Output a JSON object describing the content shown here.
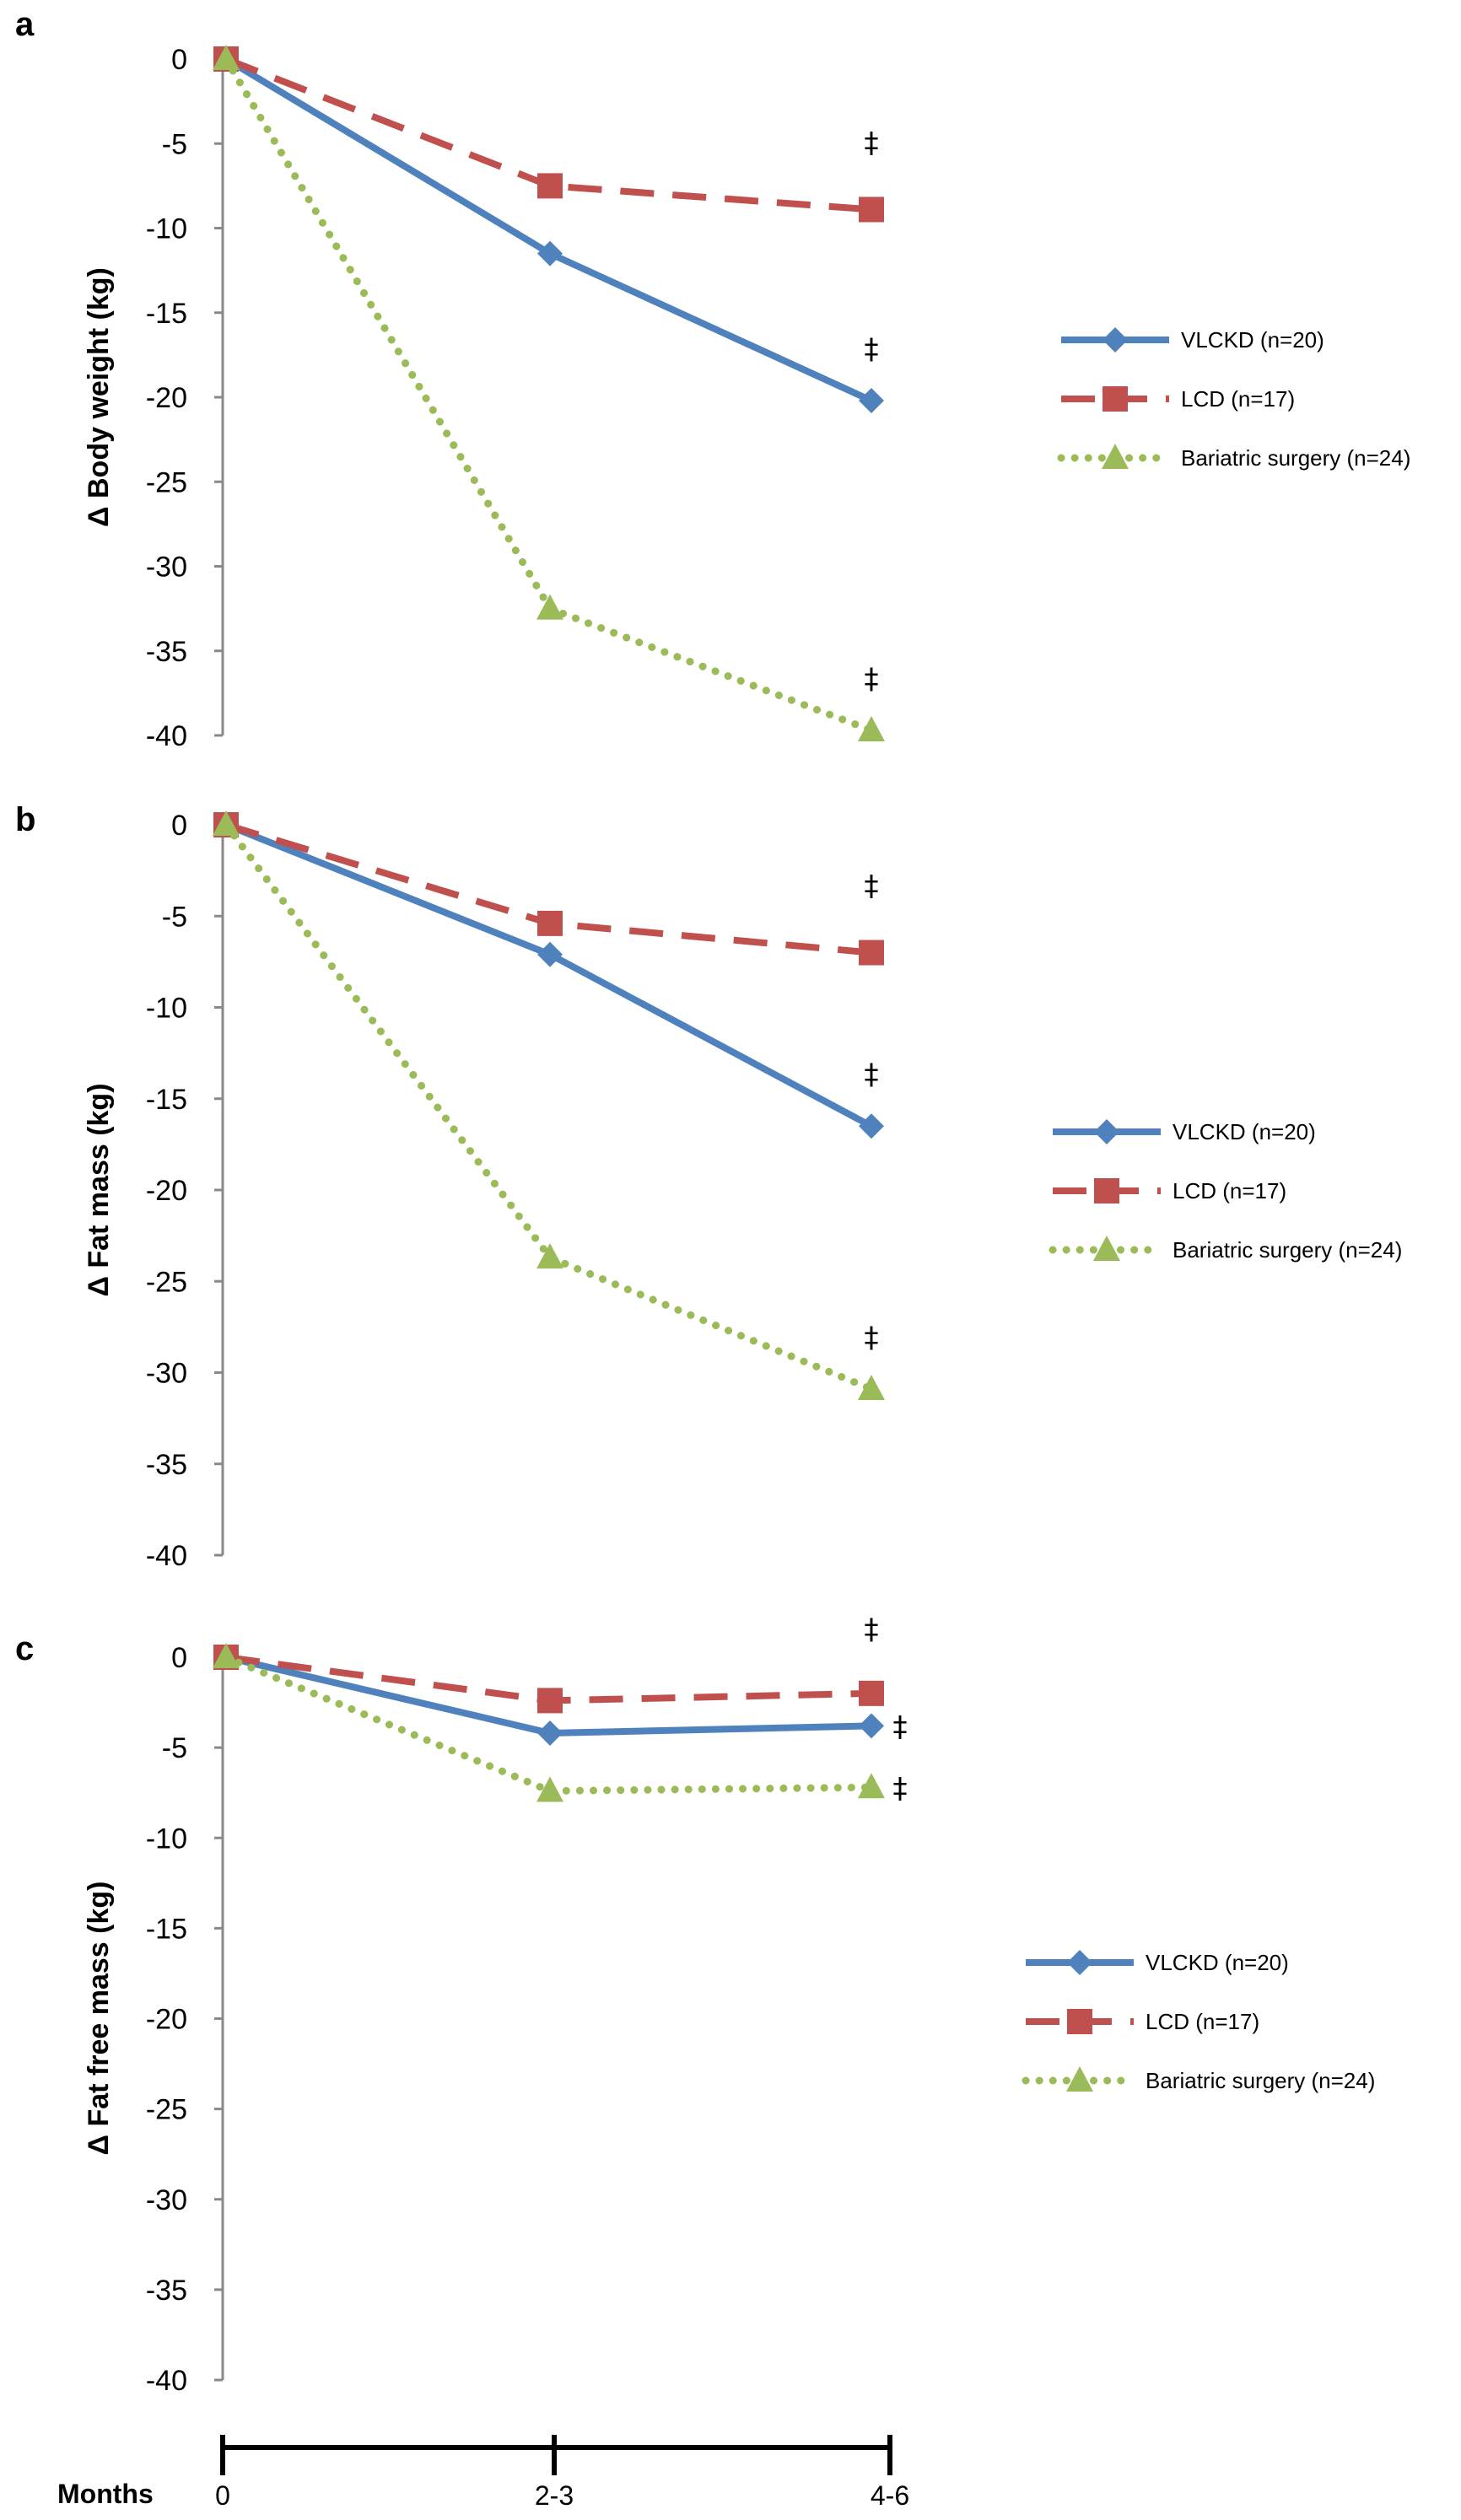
{
  "chart_data": [
    {
      "type": "line",
      "panel": "a",
      "ylabel": "Δ Body weight  (kg)",
      "ylim": [
        -40,
        0
      ],
      "yticks": [
        0,
        -5,
        -10,
        -15,
        -20,
        -25,
        -30,
        -35,
        -40
      ],
      "ytick_labels": [
        "0",
        "-5",
        "-10",
        "-15",
        "-20",
        "-25",
        "-30",
        "-35",
        "-40"
      ],
      "categories": [
        "0",
        "2-3",
        "4-6"
      ],
      "series": [
        {
          "name": "VLCKD (n=20)",
          "values": [
            0,
            -11.5,
            -20.2
          ],
          "color": "#4F81BD",
          "style": "solid",
          "marker": "diamond"
        },
        {
          "name": "LCD (n=17)",
          "values": [
            0,
            -7.5,
            -8.9
          ],
          "color": "#C0504D",
          "style": "dashed",
          "marker": "square"
        },
        {
          "name": "Bariatric surgery (n=24)",
          "values": [
            0,
            -32.5,
            -39.7
          ],
          "color": "#9BBB59",
          "style": "dotted",
          "marker": "triangle"
        }
      ],
      "annotations": [
        {
          "text": "‡",
          "series": "LCD (n=17)",
          "category": "4-6"
        },
        {
          "text": "‡",
          "series": "VLCKD (n=20)",
          "category": "4-6"
        },
        {
          "text": "‡",
          "series": "Bariatric surgery (n=24)",
          "category": "4-6"
        }
      ],
      "legend": "right"
    },
    {
      "type": "line",
      "panel": "b",
      "ylabel": "Δ Fat mass (kg)",
      "ylim": [
        -40,
        0
      ],
      "yticks": [
        0,
        -5,
        -10,
        -15,
        -20,
        -25,
        -30,
        -35,
        -40
      ],
      "ytick_labels": [
        "0",
        "-5",
        "-10",
        "-15",
        "-20",
        "-25",
        "-30",
        "-35",
        "-40"
      ],
      "categories": [
        "0",
        "2-3",
        "4-6"
      ],
      "series": [
        {
          "name": "VLCKD (n=20)",
          "values": [
            0,
            -7.1,
            -16.5
          ],
          "color": "#4F81BD",
          "style": "solid",
          "marker": "diamond"
        },
        {
          "name": "LCD (n=17)",
          "values": [
            0,
            -5.4,
            -7.0
          ],
          "color": "#C0504D",
          "style": "dashed",
          "marker": "square"
        },
        {
          "name": "Bariatric surgery (n=24)",
          "values": [
            0,
            -23.7,
            -30.9
          ],
          "color": "#9BBB59",
          "style": "dotted",
          "marker": "triangle"
        }
      ],
      "annotations": [
        {
          "text": "‡",
          "series": "LCD (n=17)",
          "category": "4-6"
        },
        {
          "text": "‡",
          "series": "VLCKD (n=20)",
          "category": "4-6"
        },
        {
          "text": "‡",
          "series": "Bariatric surgery (n=24)",
          "category": "4-6"
        }
      ],
      "legend": "right"
    },
    {
      "type": "line",
      "panel": "c",
      "ylabel": "Δ Fat free mass (kg)",
      "ylim": [
        -40,
        0
      ],
      "yticks": [
        0,
        -5,
        -10,
        -15,
        -20,
        -25,
        -30,
        -35,
        -40
      ],
      "ytick_labels": [
        "0",
        "-5",
        "-10",
        "-15",
        "-20",
        "-25",
        "-30",
        "-35",
        "-40"
      ],
      "categories": [
        "0",
        "2-3",
        "4-6"
      ],
      "series": [
        {
          "name": "VLCKD (n=20)",
          "values": [
            0,
            -4.2,
            -3.8
          ],
          "color": "#4F81BD",
          "style": "solid",
          "marker": "diamond"
        },
        {
          "name": "LCD (n=17)",
          "values": [
            0,
            -2.4,
            -2.0
          ],
          "color": "#C0504D",
          "style": "dashed",
          "marker": "square"
        },
        {
          "name": "Bariatric surgery (n=24)",
          "values": [
            0,
            -7.4,
            -7.2
          ],
          "color": "#9BBB59",
          "style": "dotted",
          "marker": "triangle"
        }
      ],
      "annotations": [
        {
          "text": "‡",
          "series": "LCD (n=17)",
          "category": "4-6"
        },
        {
          "text": "‡",
          "series": "VLCKD (n=20)",
          "category": "4-6"
        },
        {
          "text": "‡",
          "series": "Bariatric surgery (n=24)",
          "category": "4-6"
        }
      ],
      "legend": "right"
    }
  ],
  "x_axis": {
    "title": "Months",
    "tick_labels": [
      "0",
      "2-3",
      "4-6"
    ]
  }
}
